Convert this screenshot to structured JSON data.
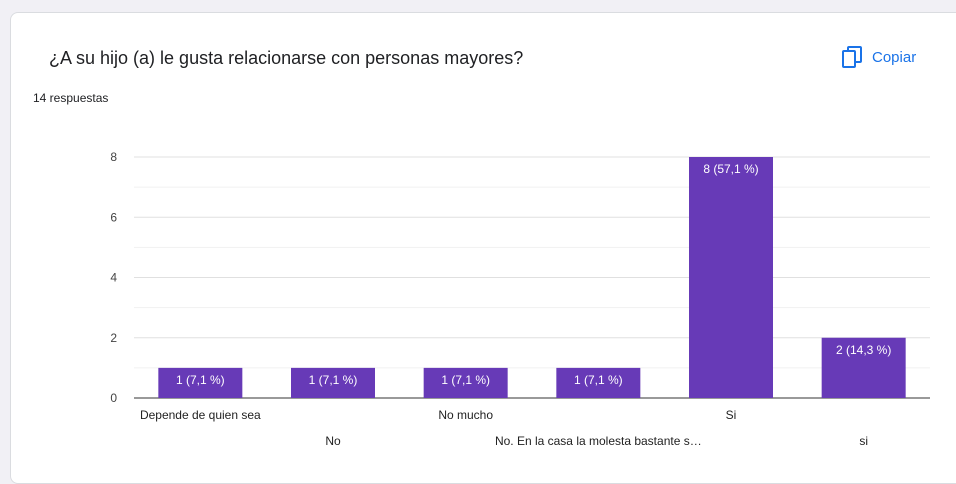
{
  "question": "¿A su hijo (a) le gusta relacionarse con personas mayores?",
  "responses": "14 respuestas",
  "copy_button": {
    "label": "Copiar",
    "icon": "copy-icon",
    "color": "#1a73e8"
  },
  "chart_data": {
    "type": "bar",
    "categories": [
      "Depende de quien sea",
      "No",
      "No mucho",
      "No. En la casa la molesta bastante s…",
      "Si",
      "si"
    ],
    "values": [
      1,
      1,
      1,
      1,
      8,
      2
    ],
    "data_labels": [
      "1 (7,1 %)",
      "1 (7,1 %)",
      "1 (7,1 %)",
      "1 (7,1 %)",
      "8 (57,1 %)",
      "2 (14,3 %)"
    ],
    "yticks": [
      "0",
      "2",
      "4",
      "6",
      "8"
    ],
    "ylim": [
      0,
      8
    ],
    "bar_color": "#673ab7",
    "grid": true
  }
}
